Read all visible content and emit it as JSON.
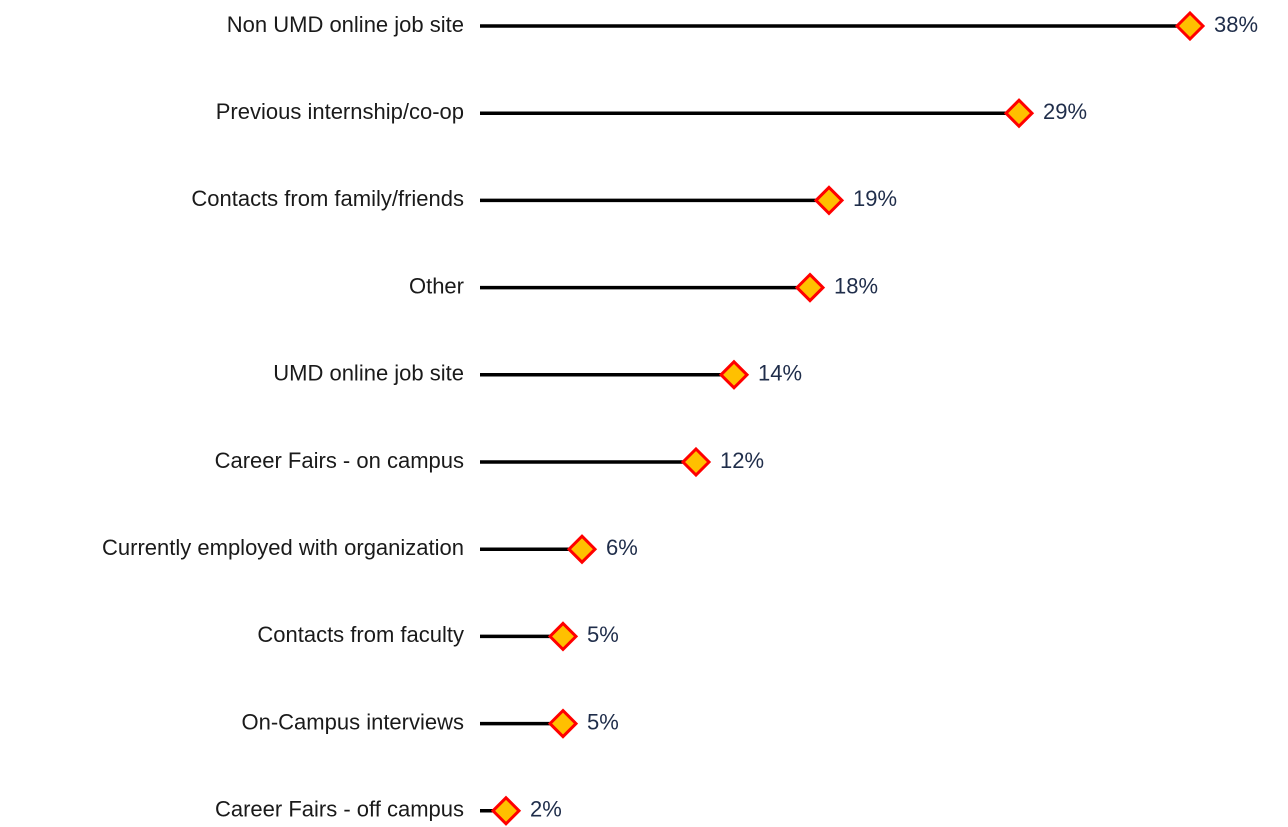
{
  "chart_data": {
    "type": "lollipop",
    "categories": [
      "Non UMD online job site",
      "Previous internship/co-op",
      "Contacts from family/friends",
      "Other",
      "UMD online job site",
      "Career Fairs - on campus",
      "Currently employed with organization",
      "Contacts from faculty",
      "On-Campus interviews",
      "Career Fairs - off campus"
    ],
    "values": [
      38,
      29,
      19,
      18,
      14,
      12,
      6,
      5,
      5,
      2
    ],
    "value_labels": [
      "38%",
      "29%",
      "19%",
      "18%",
      "14%",
      "12%",
      "6%",
      "5%",
      "5%",
      "2%"
    ],
    "color": "#000000",
    "marker_color": "#ffc000",
    "marker_edge_color": "#ff0000"
  }
}
